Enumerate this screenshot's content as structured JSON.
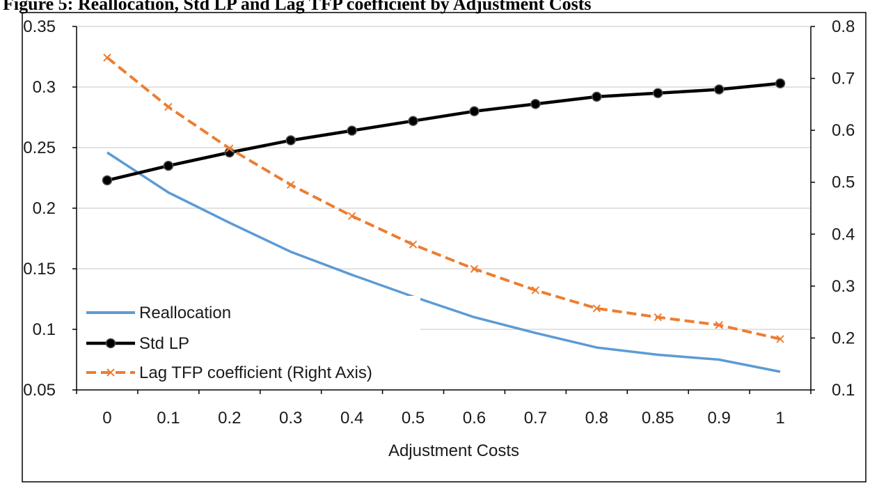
{
  "caption": "Figure 5: Reallocation, Std LP and Lag TFP coefficient by Adjustment Costs",
  "chart_data": {
    "type": "line",
    "xlabel": "Adjustment Costs",
    "categories": [
      "0",
      "0.1",
      "0.2",
      "0.3",
      "0.4",
      "0.5",
      "0.6",
      "0.7",
      "0.8",
      "0.85",
      "0.9",
      "1"
    ],
    "y_left": {
      "ylim": [
        0.05,
        0.35
      ],
      "ticks": [
        "0.05",
        "0.1",
        "0.15",
        "0.2",
        "0.25",
        "0.3",
        "0.35"
      ]
    },
    "y_right": {
      "ylim": [
        0.1,
        0.8
      ],
      "ticks": [
        "0.1",
        "0.2",
        "0.3",
        "0.4",
        "0.5",
        "0.6",
        "0.7",
        "0.8"
      ]
    },
    "grid": true,
    "legend_position": "bottom-left",
    "series": [
      {
        "name": "Reallocation",
        "axis": "left",
        "color": "#5b9bd5",
        "style": "solid",
        "marker": "none",
        "values": [
          0.246,
          0.213,
          0.188,
          0.164,
          0.145,
          0.127,
          0.11,
          0.097,
          0.085,
          0.079,
          0.075,
          0.065
        ]
      },
      {
        "name": "Std LP",
        "axis": "left",
        "color": "#000000",
        "style": "solid",
        "marker": "circle",
        "values": [
          0.223,
          0.235,
          0.246,
          0.256,
          0.264,
          0.272,
          0.28,
          0.286,
          0.292,
          0.295,
          0.298,
          0.303
        ]
      },
      {
        "name": "Lag TFP coefficient (Right Axis)",
        "axis": "right",
        "color": "#ed7d31",
        "style": "dashed",
        "marker": "x",
        "values": [
          0.74,
          0.645,
          0.565,
          0.495,
          0.435,
          0.38,
          0.333,
          0.292,
          0.257,
          0.24,
          0.225,
          0.198
        ]
      }
    ]
  }
}
